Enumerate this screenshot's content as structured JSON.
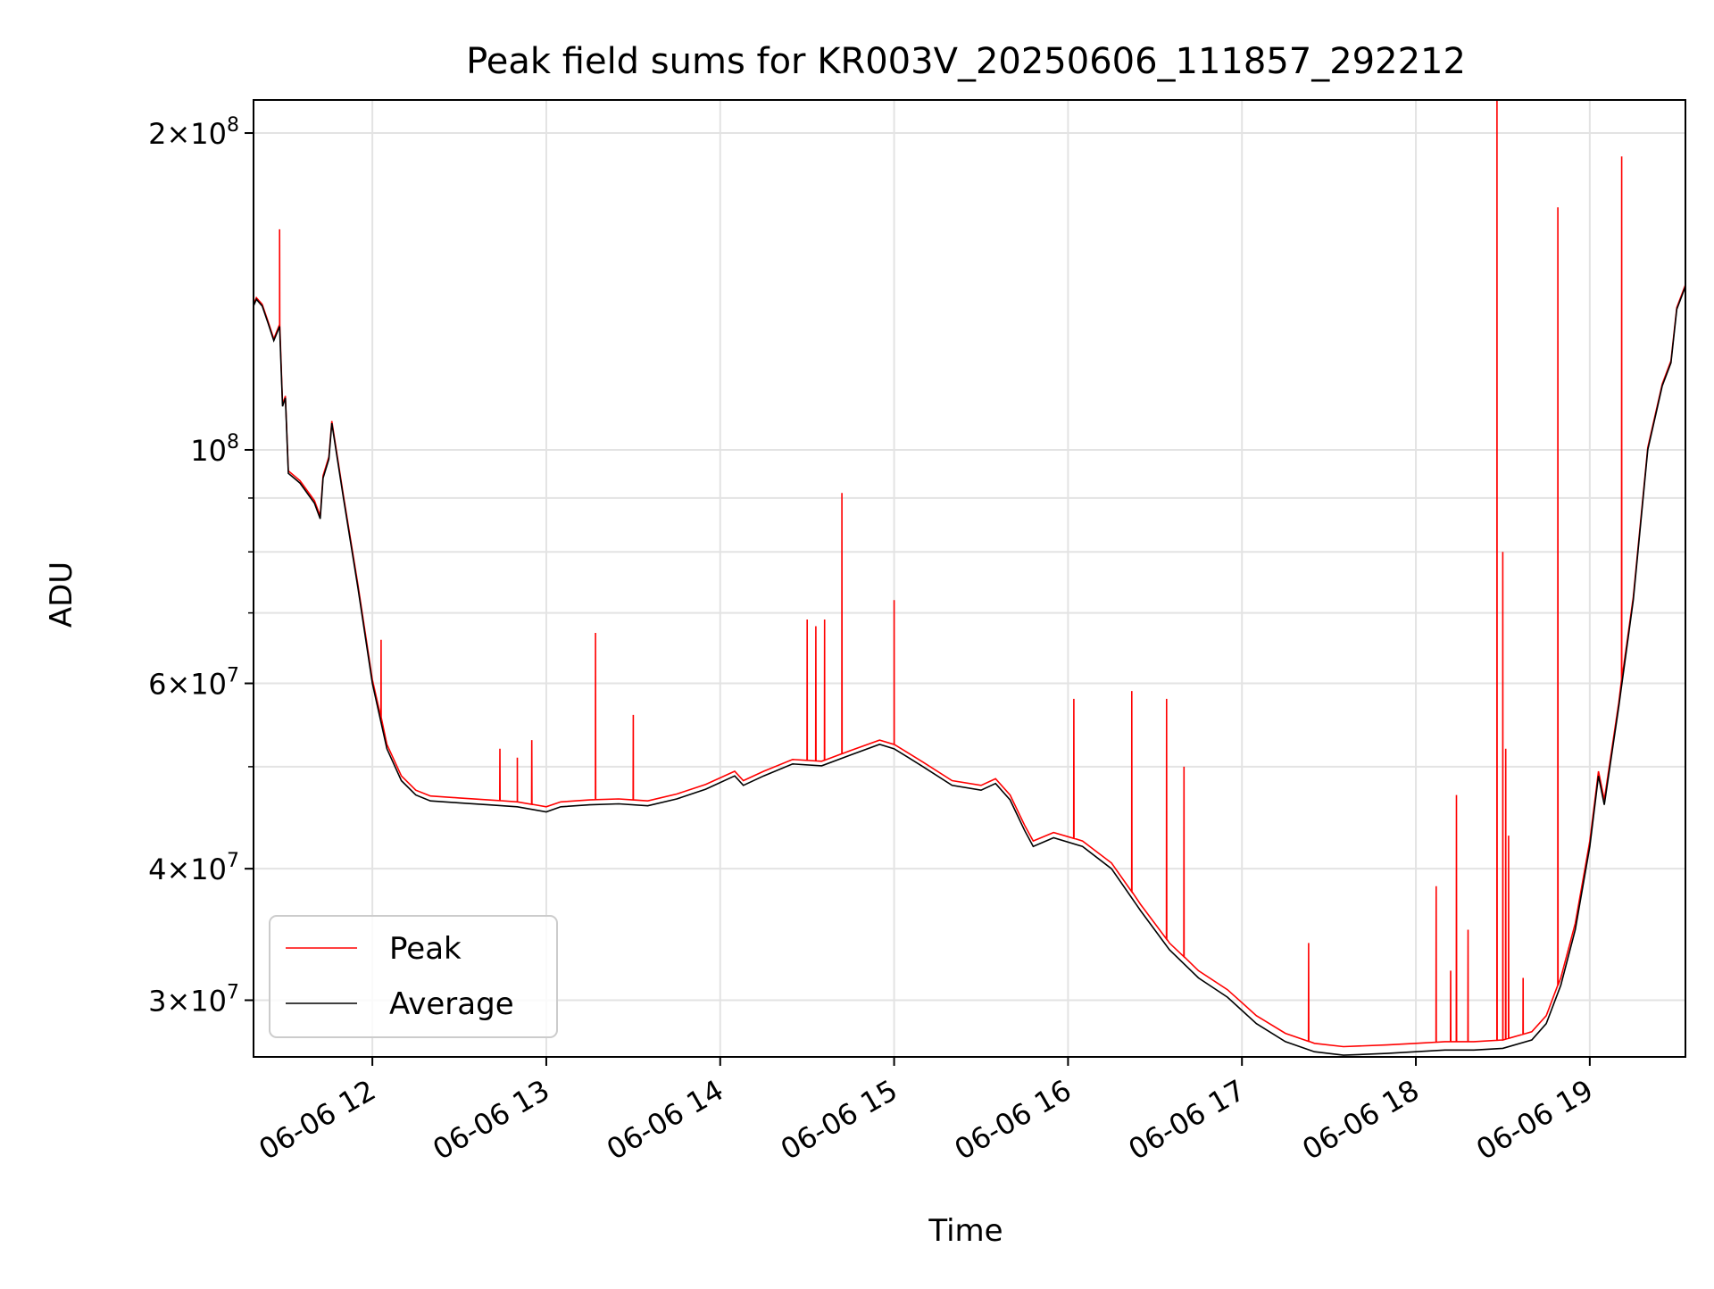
{
  "chart_data": {
    "type": "line",
    "title": "Peak field sums for KR003V_20250606_111857_292212",
    "xlabel": "Time",
    "ylabel": "ADU",
    "yscale": "log",
    "xlim": [
      "2025-06-06 11:19",
      "2025-06-06 19:33"
    ],
    "ylim": [
      26500000,
      215000000
    ],
    "grid": true,
    "legend": {
      "position": "lower-left",
      "entries": [
        "Peak",
        "Average"
      ]
    },
    "x_ticks": [
      "06-06 12",
      "06-06 13",
      "06-06 14",
      "06-06 15",
      "06-06 16",
      "06-06 17",
      "06-06 18",
      "06-06 19"
    ],
    "y_ticks": [
      {
        "value": 30000000,
        "mant": "3",
        "exp": "7"
      },
      {
        "value": 40000000,
        "mant": "4",
        "exp": "7"
      },
      {
        "value": 60000000,
        "mant": "6",
        "exp": "7"
      },
      {
        "value": 100000000,
        "mant": "",
        "exp": "8"
      },
      {
        "value": 200000000,
        "mant": "2",
        "exp": "8"
      }
    ],
    "colors": {
      "Peak": "#ff0000",
      "Average": "#000000"
    },
    "series": [
      {
        "name": "Average",
        "points": [
          [
            "2025-06-06 11:19",
            137000000
          ],
          [
            "2025-06-06 11:20",
            139000000
          ],
          [
            "2025-06-06 11:22",
            137000000
          ],
          [
            "2025-06-06 11:24",
            132000000
          ],
          [
            "2025-06-06 11:26",
            127000000
          ],
          [
            "2025-06-06 11:28",
            131000000
          ],
          [
            "2025-06-06 11:29",
            110000000
          ],
          [
            "2025-06-06 11:30",
            112000000
          ],
          [
            "2025-06-06 11:31",
            95000000
          ],
          [
            "2025-06-06 11:35",
            93000000
          ],
          [
            "2025-06-06 11:40",
            89000000
          ],
          [
            "2025-06-06 11:42",
            86000000
          ],
          [
            "2025-06-06 11:43",
            94000000
          ],
          [
            "2025-06-06 11:45",
            98000000
          ],
          [
            "2025-06-06 11:46",
            106000000
          ],
          [
            "2025-06-06 11:50",
            90000000
          ],
          [
            "2025-06-06 11:55",
            74000000
          ],
          [
            "2025-06-06 12:00",
            60000000
          ],
          [
            "2025-06-06 12:05",
            52000000
          ],
          [
            "2025-06-06 12:10",
            48500000
          ],
          [
            "2025-06-06 12:15",
            47000000
          ],
          [
            "2025-06-06 12:20",
            46400000
          ],
          [
            "2025-06-06 12:30",
            46200000
          ],
          [
            "2025-06-06 12:40",
            46000000
          ],
          [
            "2025-06-06 12:50",
            45800000
          ],
          [
            "2025-06-06 13:00",
            45300000
          ],
          [
            "2025-06-06 13:05",
            45800000
          ],
          [
            "2025-06-06 13:15",
            46000000
          ],
          [
            "2025-06-06 13:25",
            46100000
          ],
          [
            "2025-06-06 13:35",
            45900000
          ],
          [
            "2025-06-06 13:45",
            46600000
          ],
          [
            "2025-06-06 13:55",
            47600000
          ],
          [
            "2025-06-06 14:05",
            49000000
          ],
          [
            "2025-06-06 14:08",
            48000000
          ],
          [
            "2025-06-06 14:15",
            49000000
          ],
          [
            "2025-06-06 14:25",
            50300000
          ],
          [
            "2025-06-06 14:35",
            50100000
          ],
          [
            "2025-06-06 14:45",
            51300000
          ],
          [
            "2025-06-06 14:55",
            52500000
          ],
          [
            "2025-06-06 15:00",
            52000000
          ],
          [
            "2025-06-06 15:10",
            50000000
          ],
          [
            "2025-06-06 15:20",
            48000000
          ],
          [
            "2025-06-06 15:30",
            47500000
          ],
          [
            "2025-06-06 15:35",
            48200000
          ],
          [
            "2025-06-06 15:40",
            46500000
          ],
          [
            "2025-06-06 15:45",
            43500000
          ],
          [
            "2025-06-06 15:48",
            42000000
          ],
          [
            "2025-06-06 15:55",
            42800000
          ],
          [
            "2025-06-06 16:05",
            42000000
          ],
          [
            "2025-06-06 16:15",
            40000000
          ],
          [
            "2025-06-06 16:25",
            36500000
          ],
          [
            "2025-06-06 16:35",
            33500000
          ],
          [
            "2025-06-06 16:45",
            31500000
          ],
          [
            "2025-06-06 16:55",
            30200000
          ],
          [
            "2025-06-06 17:05",
            28500000
          ],
          [
            "2025-06-06 17:15",
            27400000
          ],
          [
            "2025-06-06 17:25",
            26800000
          ],
          [
            "2025-06-06 17:35",
            26600000
          ],
          [
            "2025-06-06 17:50",
            26700000
          ],
          [
            "2025-06-06 18:00",
            26800000
          ],
          [
            "2025-06-06 18:10",
            26900000
          ],
          [
            "2025-06-06 18:20",
            26900000
          ],
          [
            "2025-06-06 18:30",
            27000000
          ],
          [
            "2025-06-06 18:40",
            27500000
          ],
          [
            "2025-06-06 18:45",
            28500000
          ],
          [
            "2025-06-06 18:50",
            31000000
          ],
          [
            "2025-06-06 18:55",
            35000000
          ],
          [
            "2025-06-06 19:00",
            42000000
          ],
          [
            "2025-06-06 19:03",
            49000000
          ],
          [
            "2025-06-06 19:05",
            46000000
          ],
          [
            "2025-06-06 19:10",
            57000000
          ],
          [
            "2025-06-06 19:15",
            72000000
          ],
          [
            "2025-06-06 19:20",
            100000000
          ],
          [
            "2025-06-06 19:25",
            115000000
          ],
          [
            "2025-06-06 19:28",
            121000000
          ],
          [
            "2025-06-06 19:30",
            136000000
          ],
          [
            "2025-06-06 19:33",
            143000000
          ]
        ]
      },
      {
        "name": "Peak",
        "offset": 500000,
        "spikes": [
          [
            "2025-06-06 11:28",
            162000000
          ],
          [
            "2025-06-06 12:03",
            66000000
          ],
          [
            "2025-06-06 12:44",
            52000000
          ],
          [
            "2025-06-06 12:50",
            51000000
          ],
          [
            "2025-06-06 12:55",
            53000000
          ],
          [
            "2025-06-06 13:17",
            67000000
          ],
          [
            "2025-06-06 13:30",
            56000000
          ],
          [
            "2025-06-06 14:30",
            69000000
          ],
          [
            "2025-06-06 14:33",
            68000000
          ],
          [
            "2025-06-06 14:36",
            69000000
          ],
          [
            "2025-06-06 14:42",
            91000000
          ],
          [
            "2025-06-06 15:00",
            72000000
          ],
          [
            "2025-06-06 16:02",
            58000000
          ],
          [
            "2025-06-06 16:22",
            59000000
          ],
          [
            "2025-06-06 16:34",
            58000000
          ],
          [
            "2025-06-06 16:40",
            50000000
          ],
          [
            "2025-06-06 17:23",
            34000000
          ],
          [
            "2025-06-06 18:07",
            38500000
          ],
          [
            "2025-06-06 18:12",
            32000000
          ],
          [
            "2025-06-06 18:14",
            47000000
          ],
          [
            "2025-06-06 18:18",
            35000000
          ],
          [
            "2025-06-06 18:28",
            215000000
          ],
          [
            "2025-06-06 18:30",
            80000000
          ],
          [
            "2025-06-06 18:31",
            52000000
          ],
          [
            "2025-06-06 18:32",
            43000000
          ],
          [
            "2025-06-06 18:37",
            31500000
          ],
          [
            "2025-06-06 18:49",
            170000000
          ],
          [
            "2025-06-06 19:11",
            190000000
          ]
        ]
      }
    ]
  }
}
